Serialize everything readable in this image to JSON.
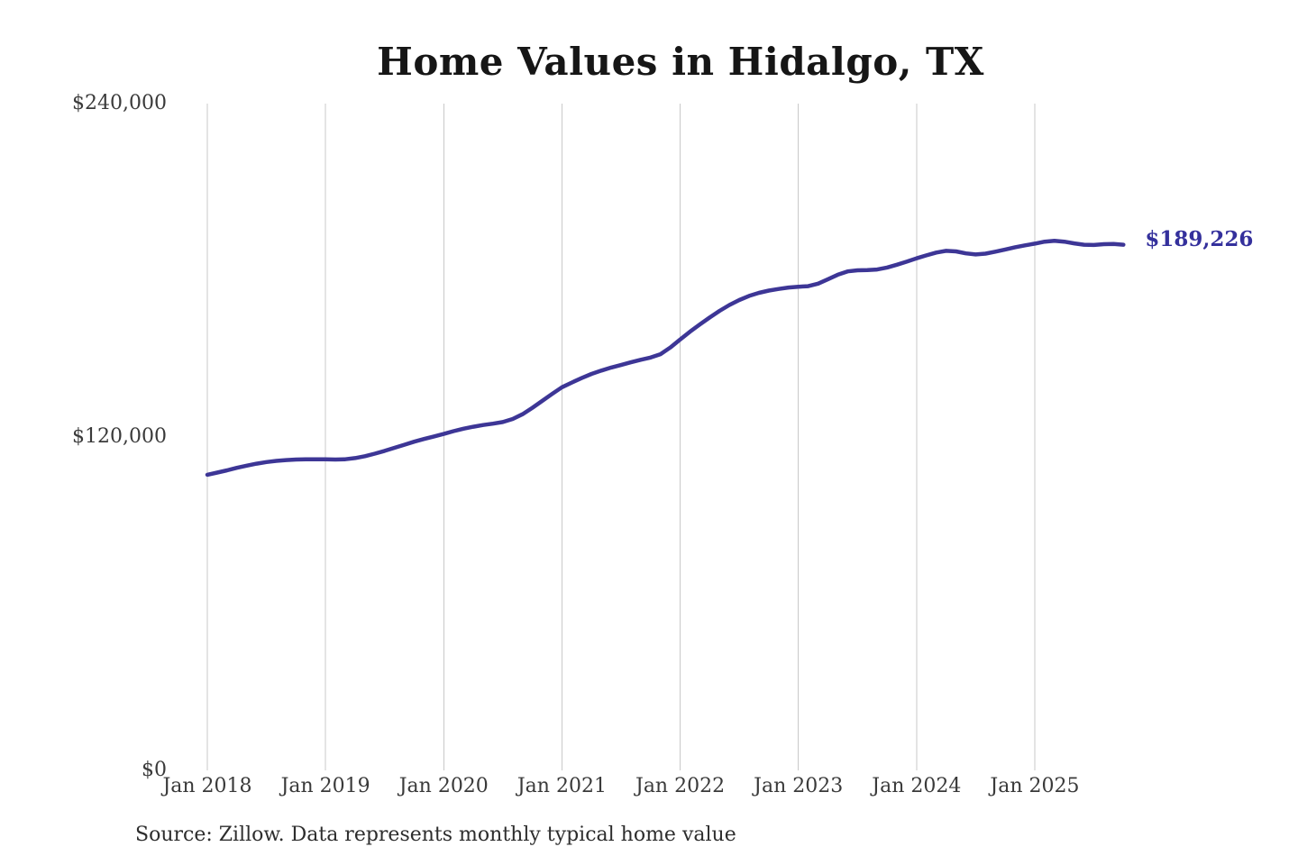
{
  "title": "Home Values in Hidalgo, TX",
  "source_note": "Source: Zillow. Data represents monthly typical home value",
  "colors": {
    "line": "#3d3696",
    "end_label": "#34309c",
    "grid": "#c9c9c9",
    "tick_text": "#3a3a3a",
    "title_text": "#161616",
    "source_text": "#2d2d2d",
    "background": "#ffffff"
  },
  "chart_data": {
    "type": "line",
    "title": "Home Values in Hidalgo, TX",
    "xlabel": "",
    "ylabel": "",
    "x_start": "Jan 2018",
    "x_interval": "monthly",
    "x_tick_labels": [
      "Jan 2018",
      "Jan 2019",
      "Jan 2020",
      "Jan 2021",
      "Jan 2022",
      "Jan 2023",
      "Jan 2024",
      "Jan 2025"
    ],
    "y_ticks": [
      0,
      120000,
      240000
    ],
    "y_tick_labels": [
      "$0",
      "$120,000",
      "$240,000"
    ],
    "ylim": [
      0,
      240000
    ],
    "grid": "vertical-only",
    "legend": "none",
    "series": [
      {
        "name": "Monthly typical home value",
        "values": [
          106400,
          107200,
          108000,
          108900,
          109700,
          110400,
          111000,
          111400,
          111700,
          111900,
          112000,
          112000,
          112000,
          111900,
          112000,
          112400,
          113100,
          114000,
          115000,
          116100,
          117200,
          118300,
          119300,
          120200,
          121100,
          122100,
          123000,
          123700,
          124300,
          124800,
          125400,
          126500,
          128200,
          130500,
          133000,
          135500,
          137900,
          139600,
          141200,
          142700,
          143900,
          145000,
          145900,
          146900,
          147800,
          148600,
          149800,
          152200,
          155100,
          157900,
          160500,
          163000,
          165400,
          167500,
          169300,
          170800,
          171900,
          172700,
          173300,
          173800,
          174100,
          174300,
          175200,
          176800,
          178400,
          179600,
          180000,
          180100,
          180300,
          181000,
          182000,
          183100,
          184300,
          185400,
          186400,
          187000,
          186800,
          186100,
          185700,
          186000,
          186700,
          187500,
          188300,
          189000,
          189600,
          190300,
          190600,
          190300,
          189700,
          189200,
          189100,
          189400,
          189500,
          189226
        ]
      }
    ],
    "last_value": 189226,
    "last_value_label": "$189,226"
  }
}
